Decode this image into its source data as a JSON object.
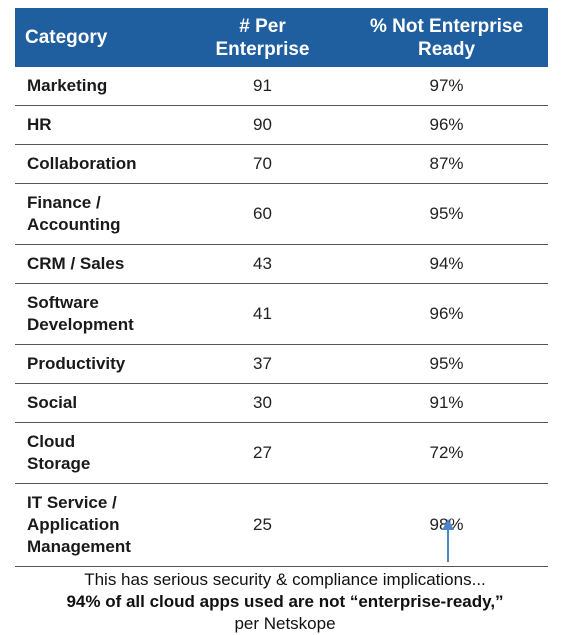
{
  "table": {
    "header": [
      "Category",
      "# Per\nEnterprise",
      "% Not Enterprise\nReady"
    ],
    "rows": [
      [
        "Marketing",
        "91",
        "97%"
      ],
      [
        "HR",
        "90",
        "96%"
      ],
      [
        "Collaboration",
        "70",
        "87%"
      ],
      [
        "Finance /\nAccounting",
        "60",
        "95%"
      ],
      [
        "CRM / Sales",
        "43",
        "94%"
      ],
      [
        "Software\nDevelopment",
        "41",
        "96%"
      ],
      [
        "Productivity",
        "37",
        "95%"
      ],
      [
        "Social",
        "30",
        "91%"
      ],
      [
        "Cloud\nStorage",
        "27",
        "72%"
      ],
      [
        "IT Service /\nApplication\nManagement",
        "25",
        "98%"
      ]
    ]
  },
  "footer": {
    "line1": "This has serious security & compliance implications...",
    "line2": "94% of all cloud apps used are not “enterprise-ready,”",
    "line3": "per Netskope"
  }
}
